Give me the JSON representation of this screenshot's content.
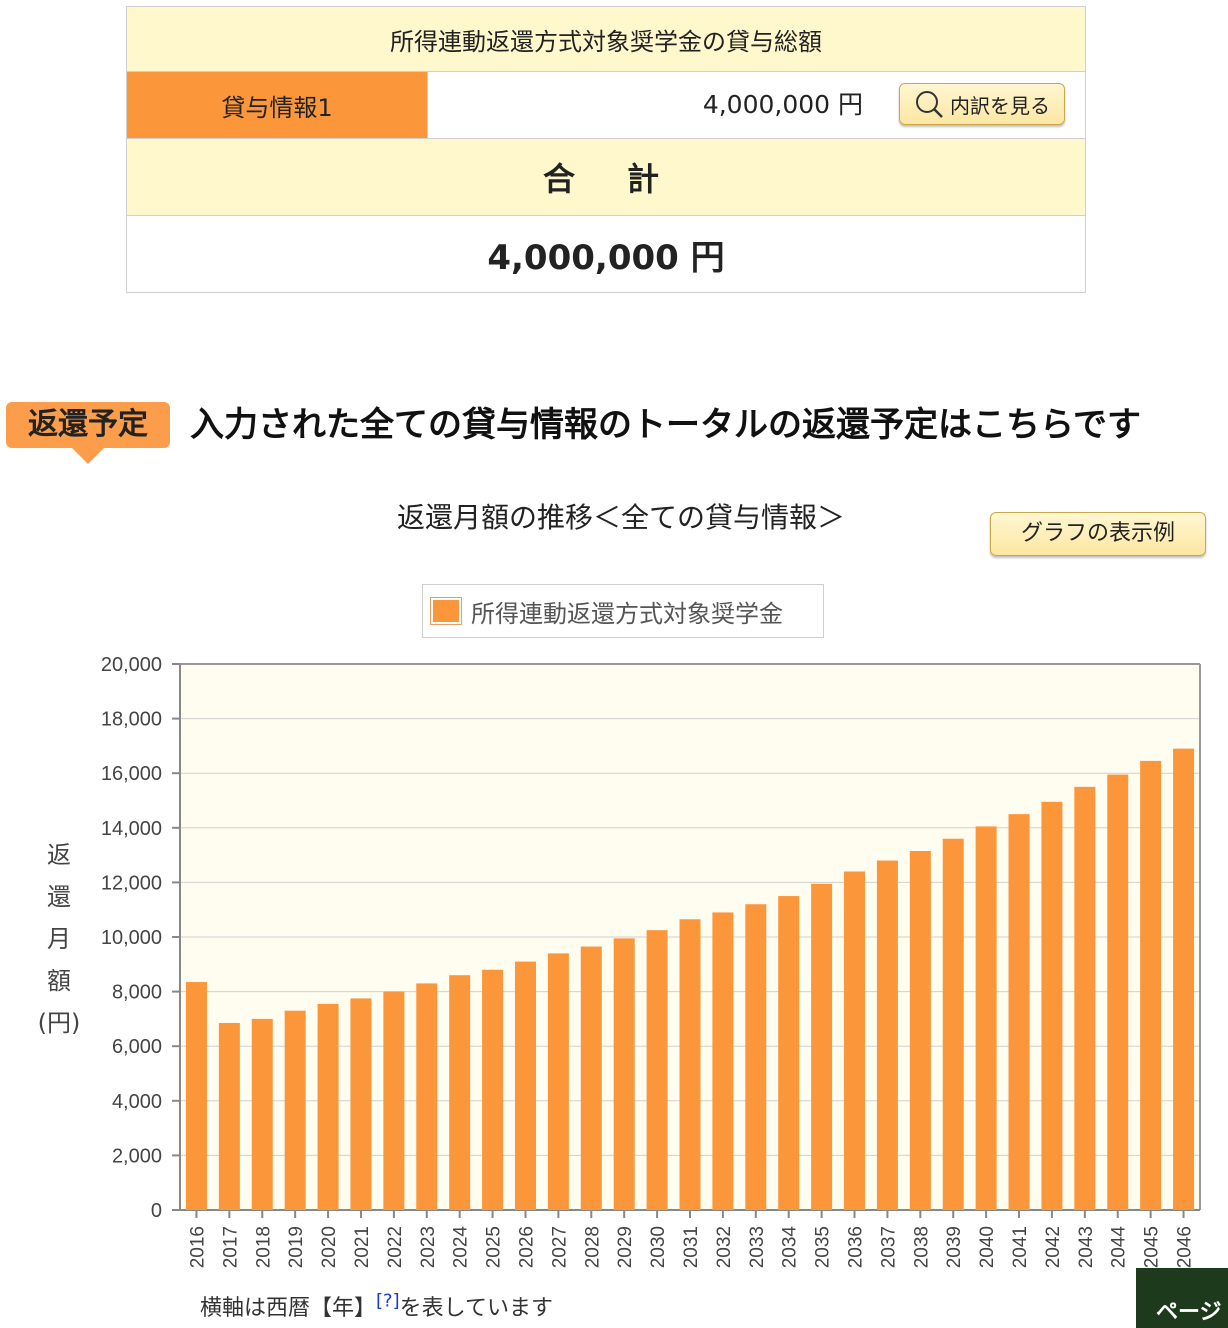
{
  "loan_table": {
    "header": "所得連動返還方式対象奨学金の貸与総額",
    "row_label": "貸与情報1",
    "row_amount": "4,000,000 円",
    "detail_button": "内訳を見る",
    "total_label": "合　計",
    "total_value": "4,000,000 円"
  },
  "schedule": {
    "badge": "返還予定",
    "title": "入力された全ての貸与情報のトータルの返還予定はこちらです"
  },
  "graph_example_button": "グラフの表示例",
  "footnote": {
    "text_before": "横軸は西暦【年】",
    "help_link": "[?]",
    "text_after": "を表しています"
  },
  "page_top_button": "ページ",
  "colors": {
    "bar": "#fb973a",
    "plot_bg": "#fffcf0",
    "header_bg": "#fff8cc",
    "accent": "#fb973a"
  },
  "chart_data": {
    "type": "bar",
    "title": "返還月額の推移＜全ての貸与情報＞",
    "ylabel": "返還月額(円)",
    "ylabel_chars": [
      "返",
      "還",
      "月",
      "額",
      "(円)"
    ],
    "xlabel": "",
    "ylim": [
      0,
      20000
    ],
    "yticks": [
      0,
      2000,
      4000,
      6000,
      8000,
      10000,
      12000,
      14000,
      16000,
      18000,
      20000
    ],
    "ytick_labels": [
      "0",
      "2,000",
      "4,000",
      "6,000",
      "8,000",
      "10,000",
      "12,000",
      "14,000",
      "16,000",
      "18,000",
      "20,000"
    ],
    "grid": true,
    "legend": "top-center",
    "categories": [
      "2016",
      "2017",
      "2018",
      "2019",
      "2020",
      "2021",
      "2022",
      "2023",
      "2024",
      "2025",
      "2026",
      "2027",
      "2028",
      "2029",
      "2030",
      "2031",
      "2032",
      "2033",
      "2034",
      "2035",
      "2036",
      "2037",
      "2038",
      "2039",
      "2040",
      "2041",
      "2042",
      "2043",
      "2044",
      "2045",
      "2046"
    ],
    "series": [
      {
        "name": "所得連動返還方式対象奨学金",
        "values": [
          8350,
          6850,
          7000,
          7300,
          7550,
          7750,
          8000,
          8300,
          8600,
          8800,
          9100,
          9400,
          9650,
          9950,
          10250,
          10650,
          10900,
          11200,
          11500,
          11950,
          12400,
          12800,
          13150,
          13600,
          14050,
          14500,
          14950,
          15500,
          15950,
          16450,
          16900
        ]
      }
    ]
  }
}
